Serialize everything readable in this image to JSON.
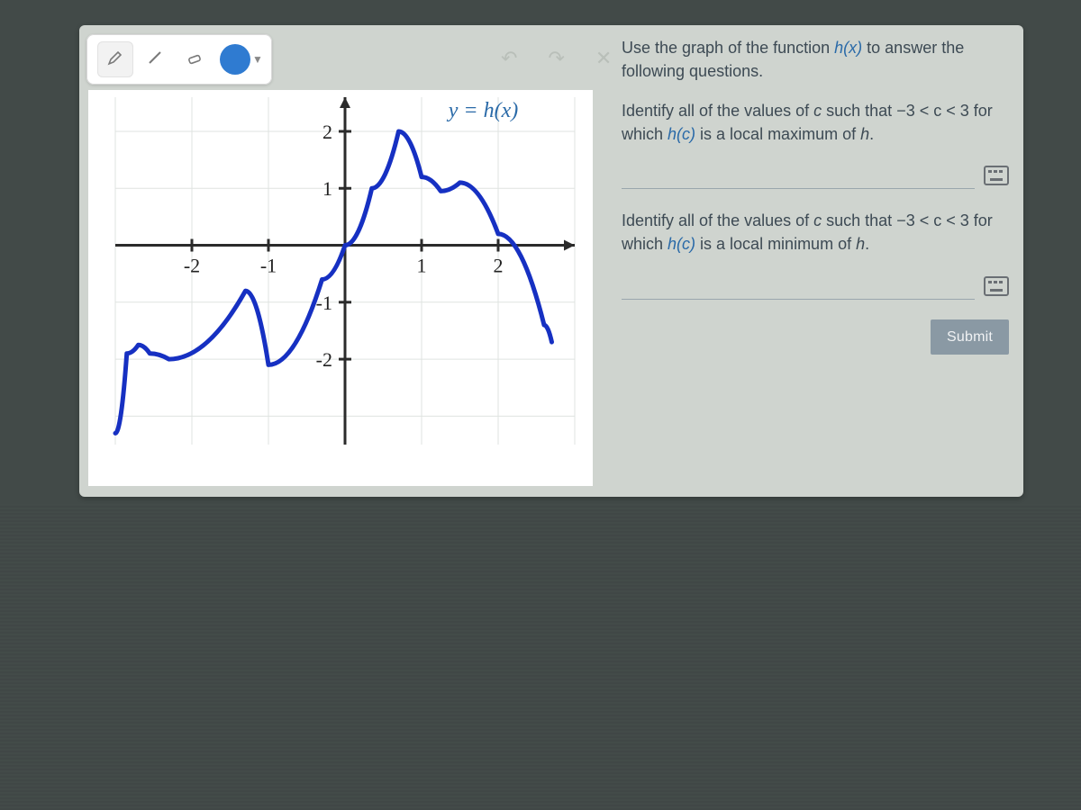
{
  "toolbar": {
    "tools": [
      {
        "name": "pencil-icon",
        "selected": true
      },
      {
        "name": "line-icon",
        "selected": false
      },
      {
        "name": "eraser-icon",
        "selected": false
      }
    ],
    "color_swatch": "#2f7bd1",
    "undo_icon": "↶",
    "redo_icon": "↷",
    "close_icon": "✕"
  },
  "graph": {
    "type": "line",
    "function_label": "y = h(x)",
    "background_color": "#ffffff",
    "grid_color": "#dfe3e0",
    "axis_color": "#2b2b2b",
    "curve_color": "#1630c2",
    "curve_width": 5,
    "axis_width": 3,
    "tick_font_size": 22,
    "label_font_size": 24,
    "xlim": [
      -3,
      3
    ],
    "ylim": [
      -3.5,
      2.6
    ],
    "xticks": [
      -2,
      -1,
      1,
      2
    ],
    "yticks": [
      -2,
      -1,
      1,
      2
    ],
    "xtick_labels": [
      "-2",
      "-1",
      "1",
      "2"
    ],
    "ytick_labels": [
      "-2",
      "-1",
      "1",
      "2"
    ],
    "points": [
      [
        -3.0,
        -3.3
      ],
      [
        -2.85,
        -1.9
      ],
      [
        -2.7,
        -1.75
      ],
      [
        -2.55,
        -1.9
      ],
      [
        -2.3,
        -2.0
      ],
      [
        -1.3,
        -0.8
      ],
      [
        -1.0,
        -2.1
      ],
      [
        -0.3,
        -0.6
      ],
      [
        0.0,
        0.0
      ],
      [
        0.35,
        1.0
      ],
      [
        0.7,
        2.0
      ],
      [
        1.0,
        1.2
      ],
      [
        1.25,
        0.95
      ],
      [
        1.5,
        1.1
      ],
      [
        2.0,
        0.2
      ],
      [
        2.6,
        -1.4
      ],
      [
        2.7,
        -1.7
      ]
    ]
  },
  "questions": {
    "intro_prefix": "Use the graph of the function ",
    "intro_fn": "h(x)",
    "intro_suffix": " to answer the following questions.",
    "q1_prefix": "Identify all of the values of ",
    "q1_var": "c",
    "q1_mid": " such that ",
    "q1_range": "−3 < c < 3",
    "q1_suffix1": " for which ",
    "q1_fn": "h(c)",
    "q1_end": " is a local maximum of ",
    "q1_of": "h",
    "q1_period": ".",
    "q2_prefix": "Identify all of the values of ",
    "q2_var": "c",
    "q2_mid": " such that ",
    "q2_range": "−3 < c < 3",
    "q2_suffix1": " for which ",
    "q2_fn": "h(c)",
    "q2_end": " is a local minimum of ",
    "q2_of": "h",
    "q2_period": ".",
    "answer1": "",
    "answer2": "",
    "submit_label": "Submit"
  }
}
